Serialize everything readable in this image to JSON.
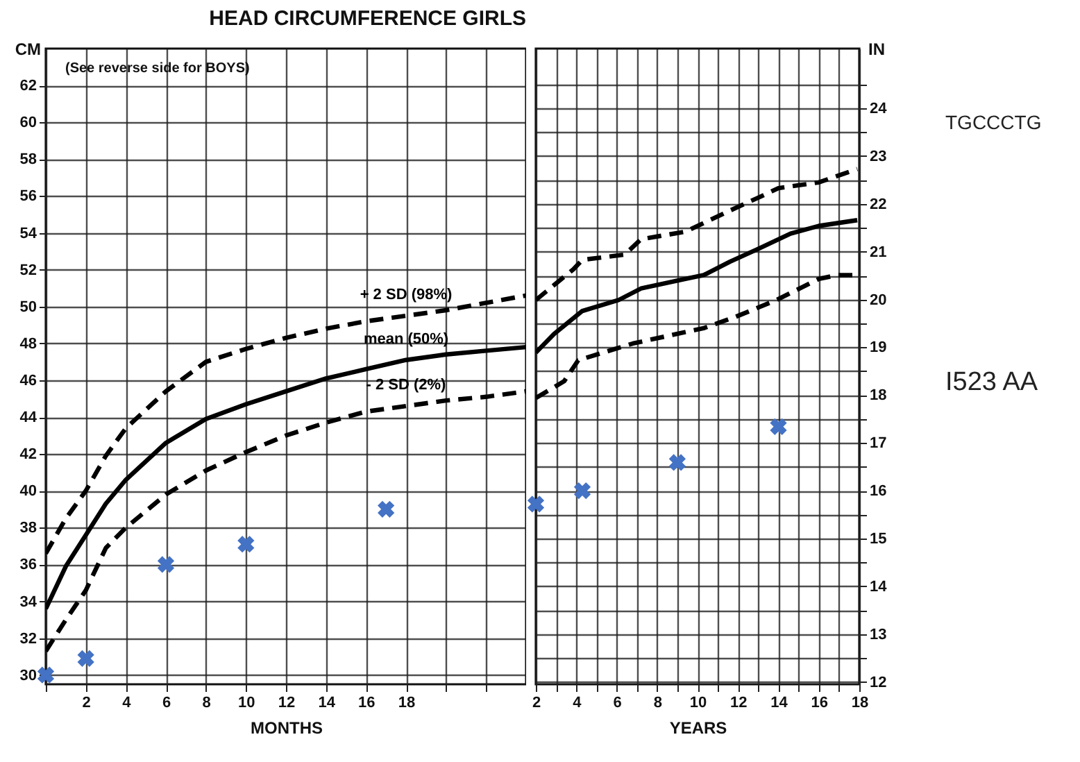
{
  "chart_data": [
    {
      "type": "line",
      "title": "HEAD CIRCUMFERENCE GIRLS",
      "xlabel": "MONTHS",
      "ylabel": "CM",
      "annotations": [
        "(See reverse side for BOYS)"
      ],
      "xlim": [
        0,
        24
      ],
      "xticks": [
        {
          "value": 0,
          "label": null
        },
        2,
        4,
        6,
        8,
        10,
        12,
        14,
        16,
        18,
        {
          "value": 20,
          "label": null
        },
        {
          "value": 22,
          "label": null
        }
      ],
      "ylim": [
        29.5,
        64
      ],
      "yticks": [
        30,
        32,
        34,
        36,
        38,
        40,
        42,
        44,
        46,
        48,
        50,
        52,
        54,
        56,
        58,
        60,
        62
      ],
      "grid": true,
      "series": [
        {
          "name": "+ 2 SD (98%)",
          "type": "line",
          "line_style": "dashed",
          "color": "#000000",
          "x": [
            0,
            1,
            2,
            3,
            4,
            6,
            8,
            10,
            12,
            14,
            16,
            18,
            20,
            22,
            24
          ],
          "values": [
            36.6,
            38.5,
            40.0,
            41.9,
            43.4,
            45.4,
            47.0,
            47.7,
            48.3,
            48.8,
            49.2,
            49.5,
            49.8,
            50.2,
            50.6
          ]
        },
        {
          "name": "mean (50%)",
          "type": "line",
          "line_style": "solid",
          "color": "#000000",
          "x": [
            0,
            1,
            2,
            3,
            4,
            6,
            8,
            10,
            12,
            14,
            16,
            18,
            20,
            22,
            24
          ],
          "values": [
            33.6,
            35.9,
            37.6,
            39.3,
            40.6,
            42.6,
            43.9,
            44.7,
            45.4,
            46.1,
            46.6,
            47.1,
            47.4,
            47.6,
            47.8
          ]
        },
        {
          "name": "- 2 SD (2%)",
          "type": "line",
          "line_style": "dashed",
          "color": "#000000",
          "x": [
            0,
            1,
            2,
            3,
            4,
            6,
            8,
            10,
            12,
            14,
            16,
            18,
            20,
            22,
            24
          ],
          "values": [
            31.3,
            33.0,
            34.6,
            36.9,
            38.0,
            39.8,
            41.1,
            42.1,
            43.0,
            43.7,
            44.3,
            44.6,
            44.9,
            45.1,
            45.4
          ]
        },
        {
          "type": "scatter",
          "marker": "cross",
          "color": "#4472c4",
          "x": [
            0,
            2,
            6,
            10,
            17
          ],
          "values": [
            30.0,
            30.9,
            36.0,
            37.1,
            39.0
          ]
        }
      ]
    },
    {
      "type": "line",
      "xlabel": "YEARS",
      "ylabel": "IN",
      "annotations": [
        "TGCCCTG",
        "I523 AA"
      ],
      "xlim": [
        2,
        18
      ],
      "xticks": [
        2,
        {
          "value": 3,
          "label": null
        },
        4,
        {
          "value": 5,
          "label": null
        },
        6,
        {
          "value": 7,
          "label": null
        },
        8,
        {
          "value": 9,
          "label": null
        },
        10,
        {
          "value": 11,
          "label": null
        },
        12,
        {
          "value": 13,
          "label": null
        },
        14,
        {
          "value": 15,
          "label": null
        },
        16,
        {
          "value": 17,
          "label": null
        },
        18
      ],
      "ylim": [
        11.95,
        25.25
      ],
      "yticks": [
        12,
        {
          "value": 12.5,
          "label": null
        },
        13,
        {
          "value": 13.5,
          "label": null
        },
        14,
        {
          "value": 14.5,
          "label": null
        },
        15,
        {
          "value": 15.5,
          "label": null
        },
        16,
        {
          "value": 16.5,
          "label": null
        },
        17,
        {
          "value": 17.5,
          "label": null
        },
        18,
        {
          "value": 18.5,
          "label": null
        },
        19,
        {
          "value": 19.5,
          "label": null
        },
        20,
        {
          "value": 20.5,
          "label": null
        },
        21,
        {
          "value": 21.5,
          "label": null
        },
        22,
        {
          "value": 22.5,
          "label": null
        },
        23,
        {
          "value": 23.5,
          "label": null
        },
        24,
        {
          "value": 24.5,
          "label": null
        }
      ],
      "grid": true,
      "series": [
        {
          "type": "line",
          "line_style": "dashed",
          "color": "#000000",
          "x": [
            2,
            3.85,
            4.3,
            6.4,
            7.2,
            9.4,
            11.6,
            13.0,
            14.0,
            16.0,
            17.9
          ],
          "values": [
            19.99,
            20.63,
            20.83,
            20.94,
            21.26,
            21.42,
            21.86,
            22.13,
            22.33,
            22.45,
            22.73
          ]
        },
        {
          "type": "line",
          "line_style": "solid",
          "color": "#000000",
          "x": [
            2,
            2.9,
            4.3,
            6.1,
            7.2,
            9.4,
            10.3,
            11.6,
            13.0,
            14.6,
            16.0,
            17.9
          ],
          "values": [
            18.89,
            19.28,
            19.76,
            19.99,
            20.23,
            20.43,
            20.51,
            20.79,
            21.06,
            21.38,
            21.54,
            21.66
          ]
        },
        {
          "type": "line",
          "line_style": "dashed",
          "color": "#000000",
          "x": [
            2,
            3.4,
            4.1,
            6.8,
            10.3,
            11.9,
            13.9,
            16.0,
            16.9,
            17.9
          ],
          "values": [
            17.94,
            18.29,
            18.73,
            19.08,
            19.4,
            19.64,
            19.99,
            20.43,
            20.51,
            20.51
          ]
        },
        {
          "type": "scatter",
          "marker": "cross",
          "color": "#4472c4",
          "x": [
            2,
            4.3,
            9,
            14
          ],
          "values": [
            15.72,
            16.0,
            16.59,
            17.34
          ]
        }
      ]
    }
  ]
}
